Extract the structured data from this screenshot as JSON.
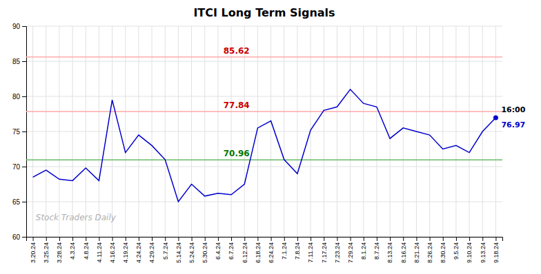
{
  "chart_data": {
    "type": "line",
    "title": "ITCI Long Term Signals",
    "categories": [
      "3.20.24",
      "3.25.24",
      "3.28.24",
      "4.3.24",
      "4.8.24",
      "4.11.24",
      "4.16.24",
      "4.19.24",
      "4.24.24",
      "4.29.24",
      "5.7.24",
      "5.14.24",
      "5.24.24",
      "5.30.24",
      "6.4.24",
      "6.7.24",
      "6.12.24",
      "6.18.24",
      "6.24.24",
      "7.1.24",
      "7.8.24",
      "7.11.24",
      "7.17.24",
      "7.23.24",
      "7.29.24",
      "8.1.24",
      "8.7.24",
      "8.13.24",
      "8.16.24",
      "8.21.24",
      "8.26.24",
      "8.30.24",
      "9.5.24",
      "9.10.24",
      "9.13.24",
      "9.18.24"
    ],
    "values": [
      68.5,
      69.5,
      68.2,
      68.0,
      69.8,
      68.0,
      79.5,
      72.0,
      74.5,
      73.0,
      71.0,
      65.0,
      67.5,
      65.8,
      66.2,
      66.0,
      67.5,
      75.5,
      76.5,
      71.0,
      69.0,
      75.2,
      78.0,
      78.5,
      81.0,
      79.0,
      78.5,
      74.0,
      75.5,
      75.0,
      74.5,
      72.5,
      73.0,
      72.0,
      75.0,
      76.97
    ],
    "color": "#0000cc",
    "ylim": [
      60,
      90
    ],
    "yticks": [
      60,
      65,
      70,
      75,
      80,
      85,
      90
    ],
    "grid": true,
    "hlines": [
      {
        "value": 85.62,
        "label": "85.62",
        "color": "#ffaaaa",
        "label_color": "#cc0000"
      },
      {
        "value": 77.84,
        "label": "77.84",
        "color": "#ffaaaa",
        "label_color": "#cc0000"
      },
      {
        "value": 70.96,
        "label": "70.96",
        "color": "#66bb66",
        "label_color": "#007700"
      }
    ],
    "annotations": [
      {
        "text": "16:00"
      },
      {
        "text": "76.97",
        "color": "#0000cc"
      }
    ],
    "watermark": "Stock Traders Daily"
  }
}
